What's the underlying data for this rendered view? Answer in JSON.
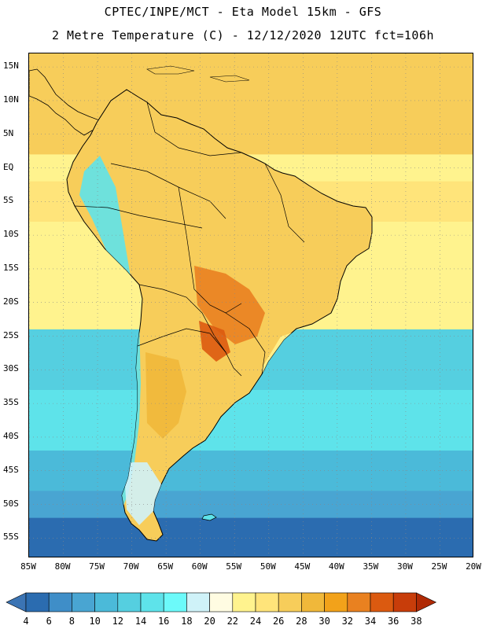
{
  "header": {
    "line1": "CPTEC/INPE/MCT -  Eta Model 15km - GFS",
    "line2": "2 Metre Temperature (C) - 12/12/2020 12UTC fct=106h"
  },
  "axes": {
    "lat_labels": [
      "15N",
      "10N",
      "5N",
      "EQ",
      "5S",
      "10S",
      "15S",
      "20S",
      "25S",
      "30S",
      "35S",
      "40S",
      "45S",
      "50S",
      "55S"
    ],
    "lon_labels": [
      "85W",
      "80W",
      "75W",
      "70W",
      "65W",
      "60W",
      "55W",
      "50W",
      "45W",
      "40W",
      "35W",
      "30W",
      "25W",
      "20W"
    ],
    "lat_range": [
      17,
      -58
    ],
    "lon_range": [
      -85,
      -20
    ],
    "grid": "dotted"
  },
  "colorbar": {
    "labels": [
      "4",
      "6",
      "8",
      "10",
      "12",
      "14",
      "16",
      "18",
      "20",
      "22",
      "24",
      "26",
      "28",
      "30",
      "32",
      "34",
      "36",
      "38"
    ],
    "colors": [
      "#3b74b4",
      "#2b6cb0",
      "#3f8ec8",
      "#49a5d2",
      "#4bbad9",
      "#55cfe0",
      "#5ee3ea",
      "#6cfafa",
      "#cff2f8",
      "#fffce2",
      "#fff38e",
      "#ffe47a",
      "#f7cd5a",
      "#f0b83a",
      "#f2a21a",
      "#e98120",
      "#db5a10",
      "#c83d0a",
      "#b02a05"
    ]
  },
  "map": {
    "ocean_bands": [
      {
        "from_lat": 17,
        "to_lat": 2,
        "color": "#f7cd5a"
      },
      {
        "from_lat": 2,
        "to_lat": -2,
        "color": "#fff38e"
      },
      {
        "from_lat": -2,
        "to_lat": -8,
        "color": "#ffe47a"
      },
      {
        "from_lat": -8,
        "to_lat": -24,
        "color": "#fff38e"
      },
      {
        "from_lat": -24,
        "to_lat": -33,
        "color": "#55cfe0"
      },
      {
        "from_lat": -33,
        "to_lat": -42,
        "color": "#5ee3ea"
      },
      {
        "from_lat": -42,
        "to_lat": -48,
        "color": "#4bbad9"
      },
      {
        "from_lat": -48,
        "to_lat": -52,
        "color": "#49a5d2"
      },
      {
        "from_lat": -52,
        "to_lat": -58,
        "color": "#2b6cb0"
      }
    ],
    "land_color": "#f7cd5a",
    "hot_color": "#e98120",
    "andes_color": "#5ee3ea"
  }
}
